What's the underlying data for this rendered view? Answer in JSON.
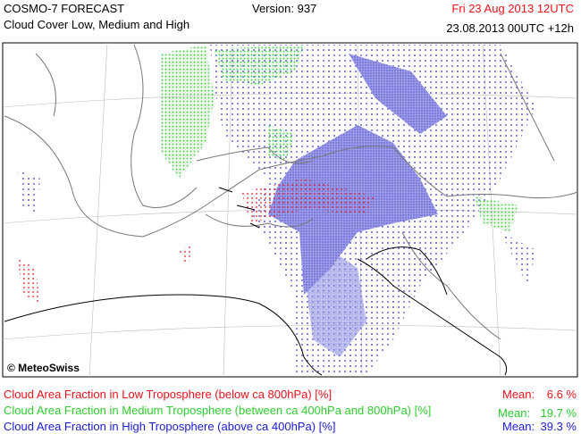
{
  "header": {
    "product": "COSMO-7 FORECAST",
    "subtitle": "Cloud Cover Low, Medium and High",
    "version": "Version: 937",
    "valid_time": "Fri 23 Aug 2013 12UTC",
    "run": "23.08.2013 00UTC +12h"
  },
  "map": {
    "copyright": "© MeteoSwiss"
  },
  "legend": [
    {
      "label": "Cloud Area Fraction in Low Troposphere (below ca 800hPa) [%]",
      "mean_label": "Mean:",
      "mean_value": "6.6 %"
    },
    {
      "label": "Cloud Area Fraction in Medium Troposphere (between ca 400hPa and 800hPa) [%]",
      "mean_label": "Mean:",
      "mean_value": "19.7 %"
    },
    {
      "label": "Cloud Area Fraction in High Troposphere (above ca 400hPa) [%]",
      "mean_label": "Mean:",
      "mean_value": "39.3 %"
    }
  ]
}
